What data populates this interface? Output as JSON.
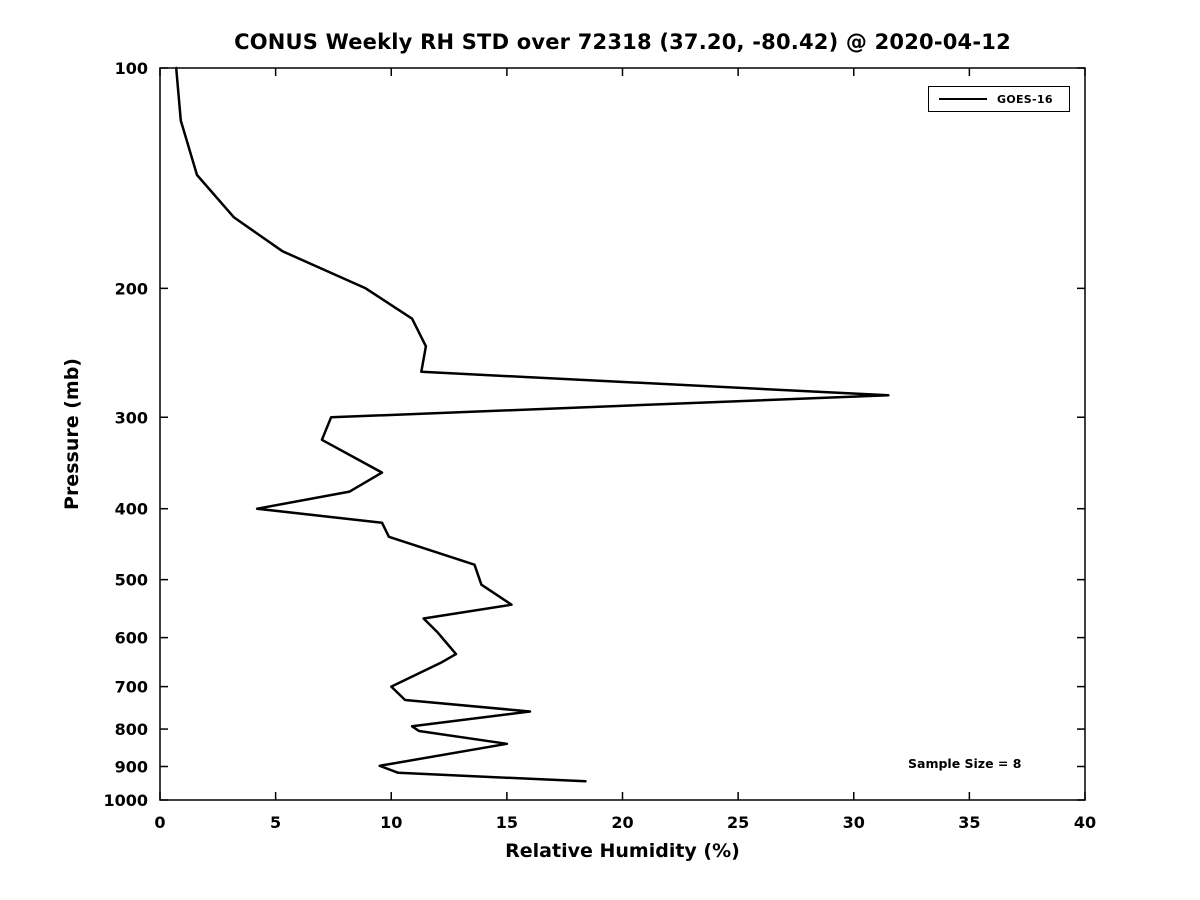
{
  "chart_data": {
    "type": "line",
    "title": "CONUS Weekly RH STD over 72318 (37.20, -80.42) @ 2020-04-12",
    "xlabel": "Relative Humidity (%)",
    "ylabel": "Pressure (mb)",
    "xlim": [
      0,
      40
    ],
    "xticks": [
      0,
      5,
      10,
      15,
      20,
      25,
      30,
      35,
      40
    ],
    "ylim": [
      100,
      1000
    ],
    "yticks": [
      100,
      200,
      300,
      400,
      500,
      600,
      700,
      800,
      900,
      1000
    ],
    "yscale": "log",
    "y_inverted": true,
    "grid": false,
    "legend_position": "top-right",
    "annotation": "Sample Size = 8",
    "line_color": "#000000",
    "series": [
      {
        "name": "GOES-16",
        "color": "#000000",
        "points_rh_pressure": [
          [
            0.7,
            100
          ],
          [
            0.9,
            118
          ],
          [
            1.6,
            140
          ],
          [
            3.2,
            160
          ],
          [
            5.3,
            178
          ],
          [
            8.9,
            200
          ],
          [
            10.9,
            220
          ],
          [
            11.5,
            240
          ],
          [
            11.3,
            260
          ],
          [
            31.5,
            280
          ],
          [
            7.4,
            300
          ],
          [
            7.0,
            322
          ],
          [
            9.6,
            357
          ],
          [
            8.2,
            379
          ],
          [
            4.2,
            400
          ],
          [
            9.6,
            418
          ],
          [
            9.9,
            437
          ],
          [
            13.6,
            477
          ],
          [
            13.9,
            508
          ],
          [
            15.2,
            541
          ],
          [
            11.4,
            565
          ],
          [
            12.0,
            590
          ],
          [
            12.8,
            632
          ],
          [
            12.2,
            648
          ],
          [
            10.0,
            700
          ],
          [
            10.6,
            730
          ],
          [
            16.0,
            757
          ],
          [
            10.9,
            793
          ],
          [
            11.2,
            805
          ],
          [
            15.0,
            838
          ],
          [
            9.5,
            898
          ],
          [
            10.3,
            918
          ],
          [
            18.4,
            943
          ]
        ]
      }
    ]
  }
}
